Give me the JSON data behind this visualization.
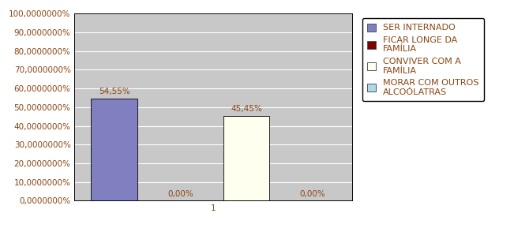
{
  "values": [
    54.55,
    0.0,
    45.45,
    0.0
  ],
  "bar_colors": [
    "#8080c0",
    "#800000",
    "#fffff0",
    "#add8e6"
  ],
  "bar_labels": [
    "54,55%",
    "0,00%",
    "45,45%",
    "0,00%"
  ],
  "xlabel": "1",
  "ylim": [
    0,
    100
  ],
  "yticks": [
    0,
    10,
    20,
    30,
    40,
    50,
    60,
    70,
    80,
    90,
    100
  ],
  "ytick_labels": [
    "0,0000000%",
    "10,0000000%",
    "20,0000000%",
    "30,0000000%",
    "40,0000000%",
    "50,0000000%",
    "60,0000000%",
    "70,0000000%",
    "80,0000000%",
    "90,0000000%",
    "100,0000000%"
  ],
  "plot_bg_color": "#c8c8c8",
  "fig_bg_color": "#ffffff",
  "legend_labels": [
    "SER INTERNADO",
    "FICAR LONGE DA\nFAMÍLIA",
    "CONVIVER COM A\nFAMÍLIA",
    "MORAR COM OUTROS\nALCOÓLATRAS"
  ],
  "legend_colors": [
    "#8080c0",
    "#800000",
    "#fffff0",
    "#add8e6"
  ],
  "bar_edge_color": "#000000",
  "grid_color": "#ffffff",
  "font_size": 7.5,
  "label_font_size": 7.5,
  "legend_font_size": 8,
  "text_color": "#8B4513"
}
